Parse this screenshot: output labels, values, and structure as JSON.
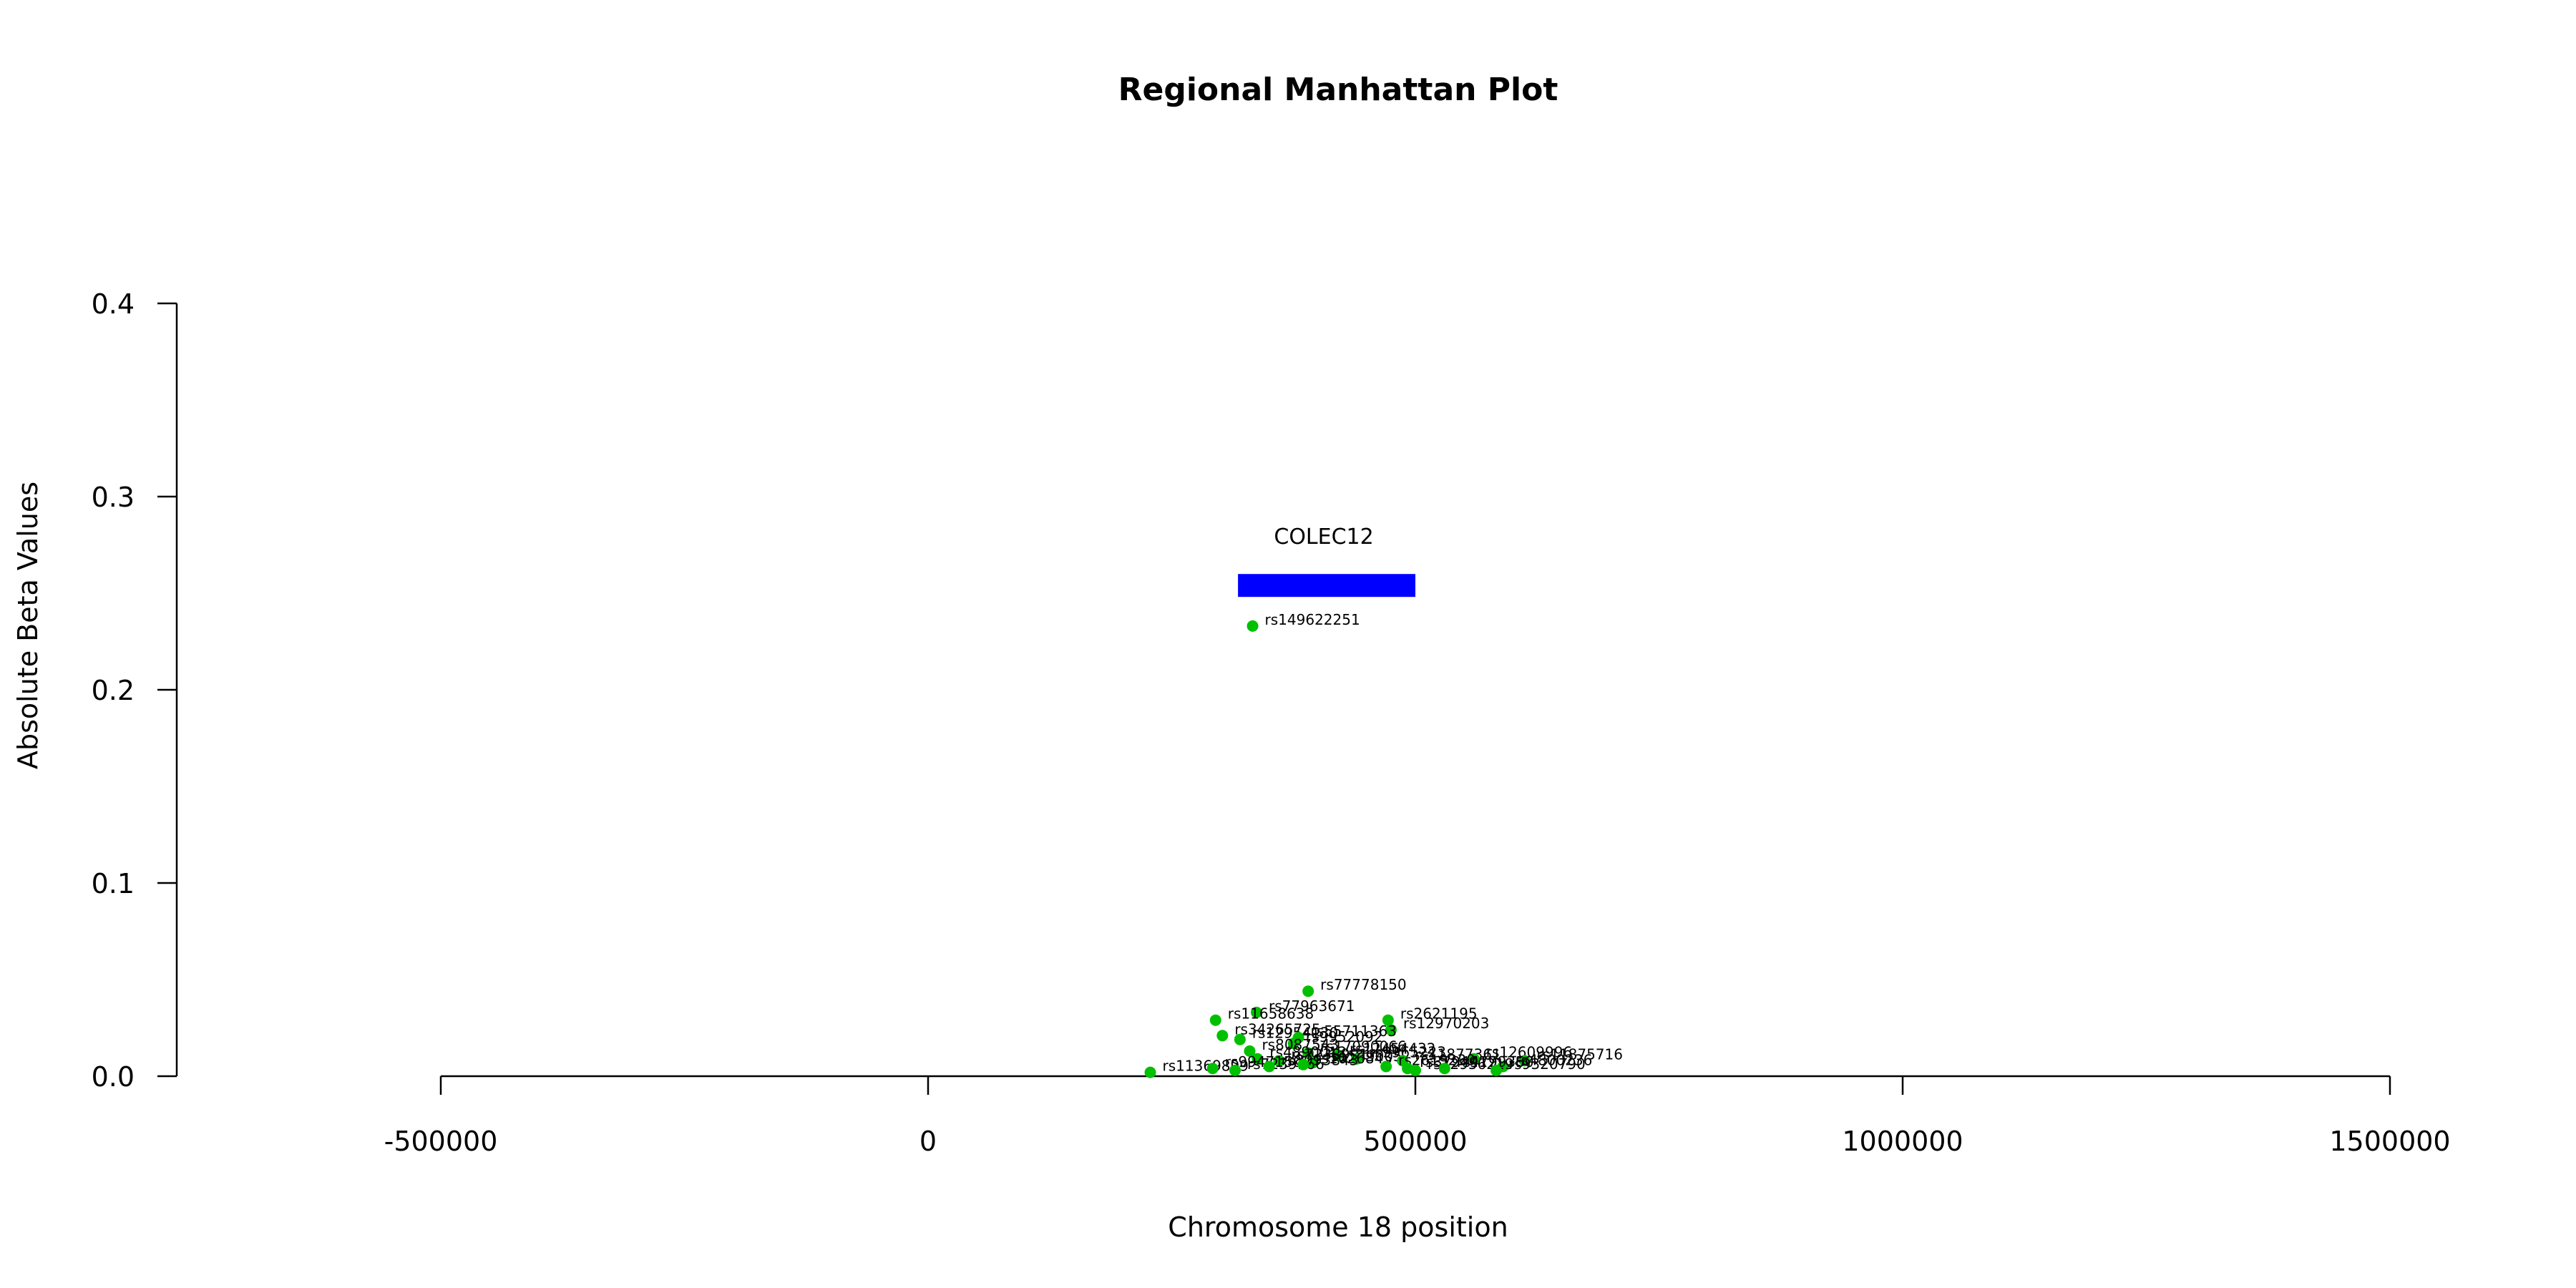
{
  "chart_data": {
    "type": "scatter",
    "title": "Regional Manhattan Plot",
    "xlabel": "Chromosome 18 position",
    "ylabel": "Absolute Beta Values",
    "xlim": [
      -500000,
      1500000
    ],
    "ylim": [
      0,
      0.4
    ],
    "x_ticks": [
      "-500000",
      "0",
      "500000",
      "1000000",
      "1500000"
    ],
    "y_ticks": [
      "0.0",
      "0.1",
      "0.2",
      "0.3",
      "0.4"
    ],
    "colors": {
      "points": "#00c000",
      "gene": "#0000ff",
      "axis": "#000000"
    },
    "gene": {
      "name": "COLEC12",
      "start": 318000,
      "end": 500000,
      "y": 0.254
    },
    "points": [
      {
        "x": 333000,
        "y": 0.233,
        "label": "rs149622251"
      },
      {
        "x": 390000,
        "y": 0.044,
        "label": "rs77778150"
      },
      {
        "x": 337000,
        "y": 0.033,
        "label": "rs77963671"
      },
      {
        "x": 295000,
        "y": 0.029,
        "label": "rs11658638"
      },
      {
        "x": 472000,
        "y": 0.029,
        "label": "rs2621195"
      },
      {
        "x": 475000,
        "y": 0.024,
        "label": "rs12970203"
      },
      {
        "x": 302000,
        "y": 0.021,
        "label": "rs34265725"
      },
      {
        "x": 320000,
        "y": 0.019,
        "label": "rs12954130"
      },
      {
        "x": 380000,
        "y": 0.02,
        "label": "rs55711363"
      },
      {
        "x": 375000,
        "y": 0.017,
        "label": "rs9952092"
      },
      {
        "x": 330000,
        "y": 0.013,
        "label": "rs8087543"
      },
      {
        "x": 390000,
        "y": 0.012,
        "label": "rs17090066"
      },
      {
        "x": 420000,
        "y": 0.011,
        "label": "rs12454432"
      },
      {
        "x": 338000,
        "y": 0.009,
        "label": "rs4890012"
      },
      {
        "x": 360000,
        "y": 0.008,
        "label": "rs7238901"
      },
      {
        "x": 395000,
        "y": 0.007,
        "label": "rs1539005"
      },
      {
        "x": 440000,
        "y": 0.009,
        "label": "rs9965223"
      },
      {
        "x": 487000,
        "y": 0.008,
        "label": "rs11877361"
      },
      {
        "x": 560000,
        "y": 0.009,
        "label": "rs12609996"
      },
      {
        "x": 612000,
        "y": 0.008,
        "label": "rs11875716"
      },
      {
        "x": 590000,
        "y": 0.005,
        "label": "rs4800236"
      },
      {
        "x": 228000,
        "y": 0.002,
        "label": "rs11369899"
      },
      {
        "x": 292000,
        "y": 0.004,
        "label": "rs9947150"
      },
      {
        "x": 315000,
        "y": 0.003,
        "label": "rs7239166"
      },
      {
        "x": 350000,
        "y": 0.005,
        "label": "rs8093843"
      },
      {
        "x": 385000,
        "y": 0.006,
        "label": "rs1026845"
      },
      {
        "x": 470000,
        "y": 0.005,
        "label": "rs2619230"
      },
      {
        "x": 492000,
        "y": 0.004,
        "label": "rs3794917"
      },
      {
        "x": 500000,
        "y": 0.003,
        "label": "rs12956219"
      },
      {
        "x": 530000,
        "y": 0.004,
        "label": "rs4799350"
      },
      {
        "x": 583000,
        "y": 0.003,
        "label": "rs9320790"
      }
    ]
  }
}
